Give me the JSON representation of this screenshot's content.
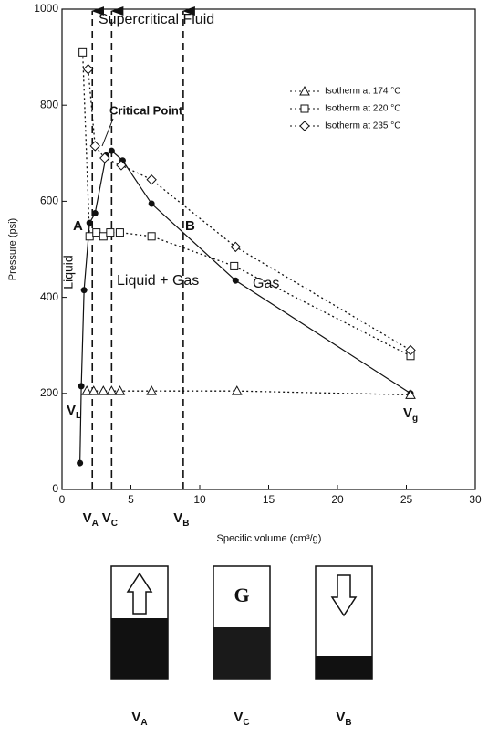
{
  "chart_data": {
    "type": "line",
    "xlabel": "Specific volume (cm³/g)",
    "ylabel": "Pressure (psi)",
    "xlim": [
      0,
      30
    ],
    "xticks": [
      0,
      5,
      10,
      15,
      20,
      25,
      30
    ],
    "ylim": [
      0,
      1000
    ],
    "yticks": [
      0,
      200,
      400,
      600,
      800,
      1000
    ],
    "legend": "upper right",
    "series": [
      {
        "x": [
          1.3,
          1.4,
          1.6,
          2.0,
          2.4,
          3.2,
          3.6,
          4.4,
          6.5,
          12.6,
          25.3
        ],
        "values": [
          55,
          215,
          415,
          555,
          575,
          695,
          705,
          685,
          595,
          435,
          200
        ],
        "color": "#111111",
        "marker": "circle",
        "dash": false
      },
      {
        "name": "Isotherm at 174 °C",
        "x": [
          1.8,
          2.3,
          3.0,
          3.6,
          4.2,
          6.5,
          12.7,
          25.3
        ],
        "values": [
          205,
          205,
          205,
          205,
          205,
          205,
          205,
          197
        ],
        "color": "#111111",
        "marker": "triangle",
        "dash": true
      },
      {
        "name": "Isotherm at 220 °C",
        "x": [
          1.5,
          2.0,
          2.5,
          3.0,
          3.5,
          4.2,
          6.5,
          12.5,
          25.3
        ],
        "values": [
          910,
          527,
          535,
          527,
          535,
          535,
          527,
          465,
          278
        ],
        "color": "#111111",
        "marker": "square",
        "dash": true
      },
      {
        "name": "Isotherm at 235 °C",
        "x": [
          1.9,
          2.4,
          3.1,
          4.3,
          6.5,
          12.6,
          25.3
        ],
        "values": [
          875,
          715,
          690,
          675,
          645,
          505,
          290
        ],
        "color": "#111111",
        "marker": "diamond",
        "dash": true
      }
    ],
    "markers": [
      {
        "label": "V",
        "sub": "A",
        "x": 2.2
      },
      {
        "label": "V",
        "sub": "C",
        "x": 3.6
      },
      {
        "label": "V",
        "sub": "B",
        "x": 8.8
      }
    ],
    "annotations": {
      "supercritical": "Supercritical Fluid",
      "critical_point": "Critical Point",
      "a": "A",
      "b": "B",
      "liquid": "Liquid",
      "two_phase": "Liquid + Gas",
      "gas": "Gas",
      "vl": {
        "label": "V",
        "sub": "L"
      },
      "vg": {
        "label": "V",
        "sub": "g"
      }
    }
  },
  "cells": {
    "labels": [
      {
        "label": "V",
        "sub": "A"
      },
      {
        "label": "V",
        "sub": "C"
      },
      {
        "label": "V",
        "sub": "B"
      }
    ],
    "gas_label": "G"
  }
}
